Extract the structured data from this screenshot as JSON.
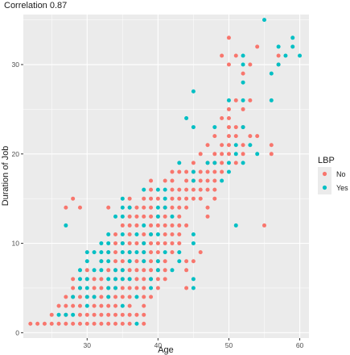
{
  "chart_data": {
    "type": "scatter",
    "title": "Correlation 0.87",
    "xlabel": "Age",
    "ylabel": "Duration of Job",
    "xlim": [
      21,
      61.3
    ],
    "ylim": [
      -0.6,
      35.6
    ],
    "x_ticks": [
      30,
      40,
      50,
      60
    ],
    "y_ticks": [
      0,
      10,
      20,
      30
    ],
    "grid": true,
    "legend": {
      "title": "LBP",
      "position": "right",
      "entries": [
        {
          "label": "No",
          "color": "#F8766D"
        },
        {
          "label": "Yes",
          "color": "#00BFC4"
        }
      ]
    },
    "series": [
      {
        "name": "No",
        "color": "#F8766D",
        "points": [
          [
            22,
            1
          ],
          [
            23,
            1
          ],
          [
            24,
            1
          ],
          [
            25,
            1
          ],
          [
            26,
            1
          ],
          [
            27,
            1
          ],
          [
            28,
            1
          ],
          [
            29,
            1
          ],
          [
            30,
            1
          ],
          [
            31,
            1
          ],
          [
            32,
            1
          ],
          [
            33,
            1
          ],
          [
            34,
            1
          ],
          [
            35,
            1
          ],
          [
            36,
            1
          ],
          [
            38,
            1
          ],
          [
            25,
            2
          ],
          [
            27,
            2
          ],
          [
            29,
            2
          ],
          [
            30,
            2
          ],
          [
            31,
            2
          ],
          [
            32,
            2
          ],
          [
            33,
            2
          ],
          [
            34,
            2
          ],
          [
            35,
            2
          ],
          [
            36,
            2
          ],
          [
            37,
            2
          ],
          [
            38,
            2
          ],
          [
            26,
            3
          ],
          [
            27,
            3
          ],
          [
            28,
            3
          ],
          [
            29,
            3
          ],
          [
            31,
            3
          ],
          [
            32,
            3
          ],
          [
            33,
            3
          ],
          [
            34,
            3
          ],
          [
            36,
            3
          ],
          [
            38,
            3
          ],
          [
            27,
            4
          ],
          [
            28,
            4
          ],
          [
            29,
            4
          ],
          [
            30,
            4
          ],
          [
            31,
            4
          ],
          [
            32,
            4
          ],
          [
            33,
            4
          ],
          [
            34,
            4
          ],
          [
            35,
            4
          ],
          [
            36,
            4
          ],
          [
            38,
            4
          ],
          [
            39,
            4
          ],
          [
            28,
            5
          ],
          [
            29,
            5
          ],
          [
            31,
            5
          ],
          [
            32,
            5
          ],
          [
            33,
            5
          ],
          [
            34,
            5
          ],
          [
            35,
            5
          ],
          [
            36,
            5
          ],
          [
            37,
            5
          ],
          [
            38,
            5
          ],
          [
            40,
            5
          ],
          [
            44,
            5
          ],
          [
            28,
            6
          ],
          [
            30,
            6
          ],
          [
            31,
            6
          ],
          [
            32,
            6
          ],
          [
            34,
            6
          ],
          [
            35,
            6
          ],
          [
            36,
            6
          ],
          [
            37,
            6
          ],
          [
            38,
            6
          ],
          [
            39,
            6
          ],
          [
            40,
            6
          ],
          [
            41,
            6
          ],
          [
            30,
            7
          ],
          [
            33,
            7
          ],
          [
            34,
            7
          ],
          [
            35,
            7
          ],
          [
            36,
            7
          ],
          [
            37,
            7
          ],
          [
            38,
            7
          ],
          [
            39,
            7
          ],
          [
            40,
            7
          ],
          [
            41,
            7
          ],
          [
            44,
            7
          ],
          [
            32,
            8
          ],
          [
            34,
            8
          ],
          [
            35,
            8
          ],
          [
            36,
            8
          ],
          [
            37,
            8
          ],
          [
            38,
            8
          ],
          [
            39,
            8
          ],
          [
            40,
            8
          ],
          [
            41,
            8
          ],
          [
            44,
            8
          ],
          [
            45,
            8
          ],
          [
            33,
            9
          ],
          [
            34,
            9
          ],
          [
            36,
            9
          ],
          [
            38,
            9
          ],
          [
            39,
            9
          ],
          [
            40,
            9
          ],
          [
            42,
            9
          ],
          [
            46,
            9
          ],
          [
            34,
            10
          ],
          [
            35,
            10
          ],
          [
            36,
            10
          ],
          [
            37,
            10
          ],
          [
            38,
            10
          ],
          [
            39,
            10
          ],
          [
            40,
            10
          ],
          [
            41,
            10
          ],
          [
            42,
            10
          ],
          [
            43,
            10
          ],
          [
            34,
            11
          ],
          [
            36,
            11
          ],
          [
            38,
            11
          ],
          [
            39,
            11
          ],
          [
            41,
            11
          ],
          [
            42,
            11
          ],
          [
            43,
            11
          ],
          [
            35,
            12
          ],
          [
            36,
            12
          ],
          [
            37,
            12
          ],
          [
            39,
            12
          ],
          [
            40,
            12
          ],
          [
            41,
            12
          ],
          [
            42,
            12
          ],
          [
            43,
            12
          ],
          [
            44,
            12
          ],
          [
            55,
            12
          ],
          [
            36,
            13
          ],
          [
            37,
            13
          ],
          [
            38,
            13
          ],
          [
            39,
            13
          ],
          [
            40,
            13
          ],
          [
            41,
            13
          ],
          [
            43,
            13
          ],
          [
            47,
            13
          ],
          [
            27,
            14
          ],
          [
            29,
            14
          ],
          [
            33,
            14
          ],
          [
            36,
            14
          ],
          [
            37,
            14
          ],
          [
            38,
            14
          ],
          [
            39,
            14
          ],
          [
            41,
            14
          ],
          [
            42,
            14
          ],
          [
            43,
            14
          ],
          [
            44,
            14
          ],
          [
            47,
            14
          ],
          [
            28,
            15
          ],
          [
            36,
            15
          ],
          [
            38,
            15
          ],
          [
            39,
            15
          ],
          [
            40,
            15
          ],
          [
            42,
            15
          ],
          [
            43,
            15
          ],
          [
            44,
            15
          ],
          [
            45,
            15
          ],
          [
            46,
            15
          ],
          [
            48,
            15
          ],
          [
            39,
            16
          ],
          [
            42,
            16
          ],
          [
            43,
            16
          ],
          [
            44,
            16
          ],
          [
            45,
            16
          ],
          [
            46,
            16
          ],
          [
            47,
            16
          ],
          [
            48,
            16
          ],
          [
            39,
            17
          ],
          [
            41,
            17
          ],
          [
            42,
            17
          ],
          [
            44,
            17
          ],
          [
            45,
            17
          ],
          [
            46,
            17
          ],
          [
            47,
            17
          ],
          [
            48,
            17
          ],
          [
            42,
            18
          ],
          [
            43,
            18
          ],
          [
            44,
            18
          ],
          [
            45,
            18
          ],
          [
            46,
            18
          ],
          [
            47,
            18
          ],
          [
            48,
            18
          ],
          [
            49,
            18
          ],
          [
            45,
            19
          ],
          [
            47,
            19
          ],
          [
            48,
            19
          ],
          [
            49,
            19
          ],
          [
            51,
            19
          ],
          [
            46,
            20
          ],
          [
            48,
            20
          ],
          [
            49,
            20
          ],
          [
            50,
            20
          ],
          [
            52,
            20
          ],
          [
            56,
            20
          ],
          [
            47,
            21
          ],
          [
            49,
            21
          ],
          [
            50,
            21
          ],
          [
            52,
            21
          ],
          [
            56,
            21
          ],
          [
            48,
            22
          ],
          [
            50,
            22
          ],
          [
            51,
            22
          ],
          [
            53,
            22
          ],
          [
            54,
            22
          ],
          [
            50,
            23
          ],
          [
            51,
            23
          ],
          [
            52,
            23
          ],
          [
            49,
            24
          ],
          [
            50,
            24
          ],
          [
            50,
            25
          ],
          [
            52,
            25
          ],
          [
            51,
            26
          ],
          [
            53,
            26
          ],
          [
            52,
            29
          ],
          [
            50,
            30
          ],
          [
            53,
            30
          ],
          [
            57,
            30
          ],
          [
            49,
            31
          ],
          [
            51,
            31
          ],
          [
            57,
            31
          ],
          [
            54,
            32
          ],
          [
            50,
            33
          ]
        ]
      },
      {
        "name": "Yes",
        "color": "#00BFC4",
        "points": [
          [
            26,
            2
          ],
          [
            27,
            2
          ],
          [
            28,
            2
          ],
          [
            30,
            3
          ],
          [
            35,
            3
          ],
          [
            37,
            1
          ],
          [
            28,
            4
          ],
          [
            30,
            4
          ],
          [
            31,
            4
          ],
          [
            33,
            4
          ],
          [
            37,
            4
          ],
          [
            29,
            5
          ],
          [
            30,
            5
          ],
          [
            33,
            5
          ],
          [
            34,
            5
          ],
          [
            39,
            5
          ],
          [
            45,
            5
          ],
          [
            29,
            6
          ],
          [
            30,
            6
          ],
          [
            33,
            6
          ],
          [
            34,
            6
          ],
          [
            35,
            6
          ],
          [
            36,
            6
          ],
          [
            39,
            6
          ],
          [
            45,
            6
          ],
          [
            29,
            7
          ],
          [
            31,
            7
          ],
          [
            32,
            7
          ],
          [
            34,
            7
          ],
          [
            35,
            7
          ],
          [
            40,
            7
          ],
          [
            42,
            7
          ],
          [
            30,
            8
          ],
          [
            32,
            8
          ],
          [
            33,
            8
          ],
          [
            36,
            8
          ],
          [
            38,
            8
          ],
          [
            40,
            8
          ],
          [
            43,
            8
          ],
          [
            30,
            9
          ],
          [
            31,
            9
          ],
          [
            32,
            9
          ],
          [
            33,
            9
          ],
          [
            35,
            9
          ],
          [
            36,
            9
          ],
          [
            37,
            9
          ],
          [
            38,
            9
          ],
          [
            41,
            9
          ],
          [
            43,
            9
          ],
          [
            32,
            10
          ],
          [
            33,
            10
          ],
          [
            35,
            10
          ],
          [
            38,
            10
          ],
          [
            45,
            10
          ],
          [
            33,
            11
          ],
          [
            35,
            11
          ],
          [
            37,
            11
          ],
          [
            39,
            11
          ],
          [
            40,
            11
          ],
          [
            45,
            11
          ],
          [
            27,
            12
          ],
          [
            38,
            12
          ],
          [
            51,
            12
          ],
          [
            34,
            13
          ],
          [
            35,
            13
          ],
          [
            40,
            13
          ],
          [
            42,
            13
          ],
          [
            35,
            14
          ],
          [
            36,
            14
          ],
          [
            40,
            14
          ],
          [
            41,
            14
          ],
          [
            35,
            15
          ],
          [
            41,
            15
          ],
          [
            38,
            16
          ],
          [
            40,
            16
          ],
          [
            41,
            16
          ],
          [
            45,
            17
          ],
          [
            49,
            17
          ],
          [
            45,
            18
          ],
          [
            50,
            18
          ],
          [
            43,
            19
          ],
          [
            47,
            19
          ],
          [
            48,
            19
          ],
          [
            50,
            19
          ],
          [
            52,
            19
          ],
          [
            51,
            20
          ],
          [
            54,
            20
          ],
          [
            51,
            21
          ],
          [
            53,
            21
          ],
          [
            45,
            23
          ],
          [
            48,
            23
          ],
          [
            52,
            23
          ],
          [
            44,
            24
          ],
          [
            50,
            26
          ],
          [
            52,
            26
          ],
          [
            56,
            26
          ],
          [
            45,
            27
          ],
          [
            52,
            28
          ],
          [
            56,
            29
          ],
          [
            52,
            30
          ],
          [
            57,
            30
          ],
          [
            52,
            31
          ],
          [
            58,
            31
          ],
          [
            60,
            31
          ],
          [
            57,
            32
          ],
          [
            59,
            32
          ],
          [
            59,
            33
          ],
          [
            55,
            35
          ]
        ]
      }
    ]
  }
}
